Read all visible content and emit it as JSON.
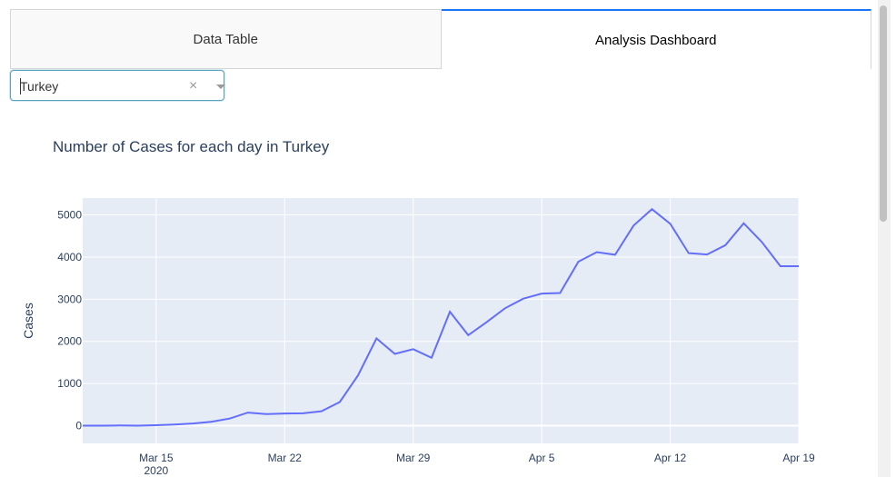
{
  "tabs": [
    {
      "label": "Data Table",
      "active": false
    },
    {
      "label": "Analysis Dashboard",
      "active": true
    }
  ],
  "dropdown": {
    "value": "Turkey"
  },
  "chart_data": {
    "type": "line",
    "title": "Number of Cases for each day in Turkey",
    "ylabel": "Cases",
    "xlabel": "",
    "x_start": "2020-03-11",
    "x": [
      "2020-03-11",
      "2020-03-12",
      "2020-03-13",
      "2020-03-14",
      "2020-03-15",
      "2020-03-16",
      "2020-03-17",
      "2020-03-18",
      "2020-03-19",
      "2020-03-20",
      "2020-03-21",
      "2020-03-22",
      "2020-03-23",
      "2020-03-24",
      "2020-03-25",
      "2020-03-26",
      "2020-03-27",
      "2020-03-28",
      "2020-03-29",
      "2020-03-30",
      "2020-03-31",
      "2020-04-01",
      "2020-04-02",
      "2020-04-03",
      "2020-04-04",
      "2020-04-05",
      "2020-04-06",
      "2020-04-07",
      "2020-04-08",
      "2020-04-09",
      "2020-04-10",
      "2020-04-11",
      "2020-04-12",
      "2020-04-13",
      "2020-04-14",
      "2020-04-15",
      "2020-04-16",
      "2020-04-17",
      "2020-04-18",
      "2020-04-19"
    ],
    "values": [
      1,
      0,
      4,
      1,
      12,
      29,
      51,
      93,
      168,
      311,
      277,
      289,
      293,
      343,
      561,
      1196,
      2069,
      1704,
      1815,
      1610,
      2704,
      2148,
      2456,
      2786,
      3013,
      3135,
      3148,
      3892,
      4117,
      4056,
      4747,
      5138,
      4789,
      4093,
      4062,
      4281,
      4801,
      4353,
      3783,
      3783
    ],
    "xticks": [
      {
        "label": "Mar 15",
        "sub": "2020",
        "date": "2020-03-15"
      },
      {
        "label": "Mar 22",
        "date": "2020-03-22"
      },
      {
        "label": "Mar 29",
        "date": "2020-03-29"
      },
      {
        "label": "Apr 5",
        "date": "2020-04-05"
      },
      {
        "label": "Apr 12",
        "date": "2020-04-12"
      },
      {
        "label": "Apr 19",
        "date": "2020-04-19"
      }
    ],
    "yticks": [
      0,
      1000,
      2000,
      3000,
      4000,
      5000
    ],
    "ylim": [
      -420,
      5400
    ],
    "color": "#636efa",
    "background": "#e5ecf6",
    "grid": true
  }
}
